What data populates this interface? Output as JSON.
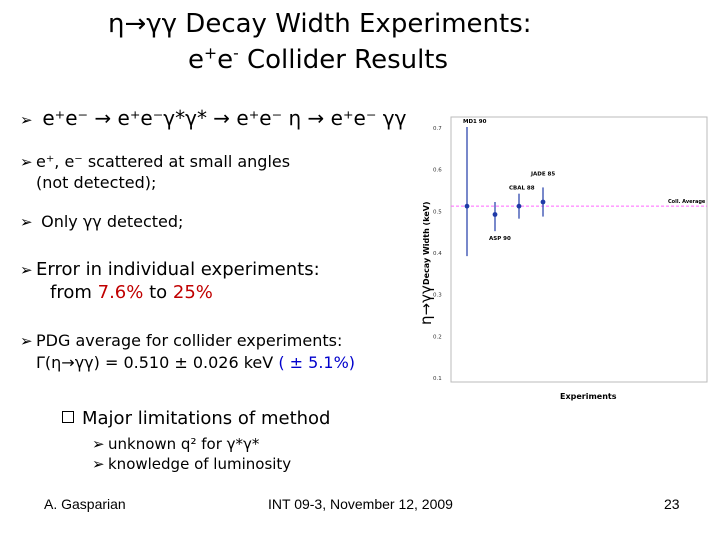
{
  "slide": {
    "title_line1": "η→γγ Decay Width Experiments:",
    "title_line2_pre": "e",
    "title_line2_sup1": "+",
    "title_line2_mid": "e",
    "title_line2_sup2": "-",
    "title_line2_post": " Collider Results",
    "bullets": {
      "b1": "e⁺e⁻ → e⁺e⁻γ*γ* → e⁺e⁻ η → e⁺e⁻ γγ",
      "b2_line1": "e⁺, e⁻ scattered at small angles",
      "b2_line2": "(not detected);",
      "b3": "Only γγ detected;",
      "b4_line1": "Error in individual experiments:",
      "b4_line2_pre": "from ",
      "b4_line2_a": "7.6%",
      "b4_line2_mid": " to ",
      "b4_line2_b": "25%",
      "b5_line1": "PDG average for collider experiments:",
      "b5_line2_pre": "Γ(η→γγ) = 0.510 ± 0.026 keV ",
      "b5_line2_blue": "( ± 5.1%)"
    },
    "limitations": {
      "header": "Major limitations of method",
      "item1": "unknown q² for γ*γ*",
      "item2": "knowledge of luminosity"
    },
    "footer": {
      "author": "A. Gasparian",
      "event": "INT 09-3, November 12, 2009",
      "page": "23"
    },
    "colors": {
      "accent_red": "#c00000",
      "accent_blue": "#0000cc",
      "data_blue": "#1f3aa8",
      "avg_line": "#ff66ff"
    }
  },
  "chart_data": {
    "type": "scatter",
    "ylabel_big": "η→γγ",
    "ylabel_small": "Decay Width (keV)",
    "xlabel": "Experiments",
    "ylim": [
      0.1,
      0.7
    ],
    "yticks": [
      "0.7",
      "0.6",
      "0.5",
      "0.4",
      "0.3",
      "0.2",
      "0.1"
    ],
    "average": {
      "label": "Coll. Average",
      "value": 0.51
    },
    "points": [
      {
        "name": "MD1 90",
        "value": 0.51,
        "err_low": 0.12,
        "err_high": 0.19
      },
      {
        "name": "ASP 90",
        "value": 0.49,
        "err_low": 0.04,
        "err_high": 0.03
      },
      {
        "name": "CBAL 88",
        "value": 0.51,
        "err_low": 0.03,
        "err_high": 0.03
      },
      {
        "name": "JADE 85",
        "value": 0.52,
        "err_low": 0.035,
        "err_high": 0.035
      }
    ]
  }
}
